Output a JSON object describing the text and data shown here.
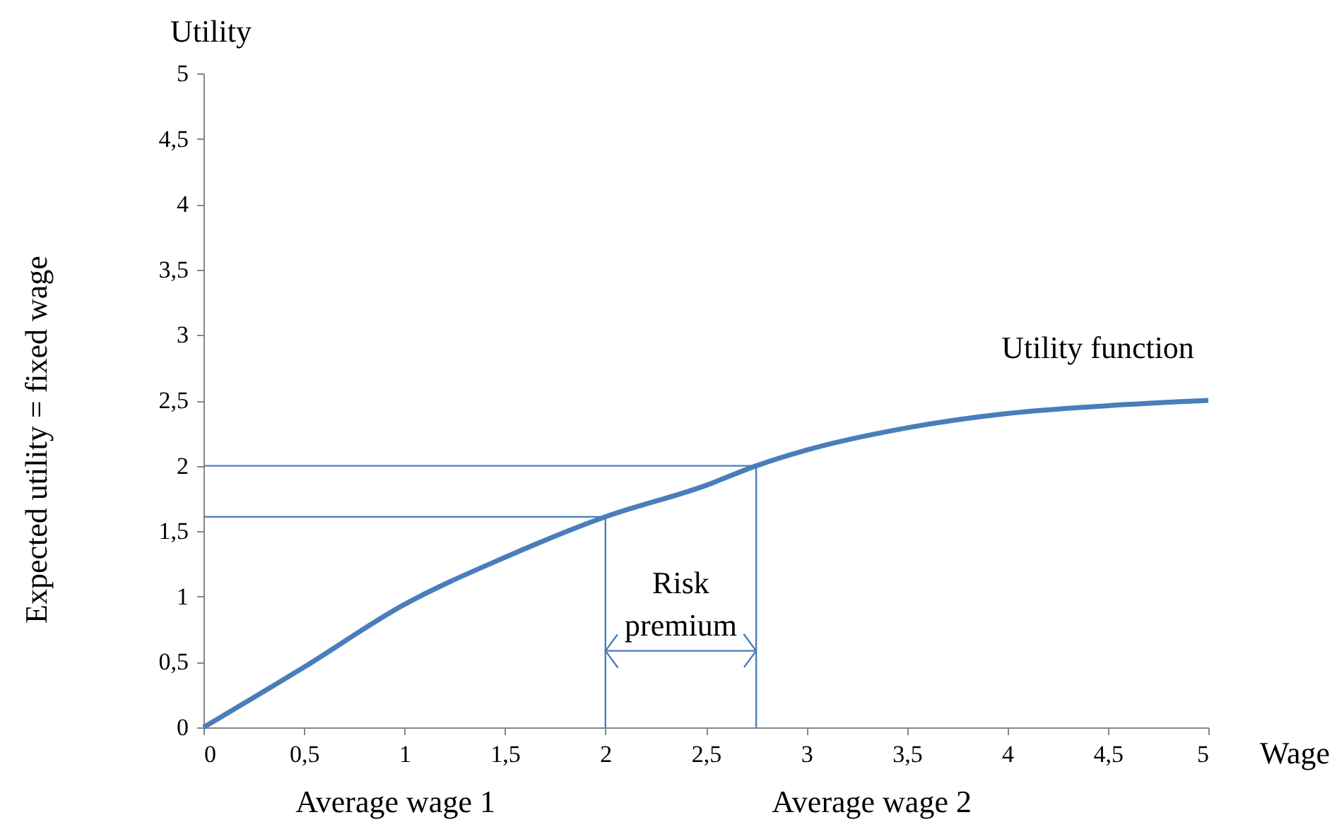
{
  "chart_data": {
    "type": "line",
    "xlabel": "Wage",
    "ylabel": "Utility",
    "annotations": [
      "Expected utility = fixed wage",
      "Utility function",
      "Risk premium",
      "Average wage 1",
      "Average wage 2"
    ],
    "series": [
      {
        "color": "#4a7ebb",
        "x": [
          0,
          0.5,
          1,
          1.5,
          2,
          2.5,
          2.75,
          3,
          3.5,
          4,
          4.5,
          5
        ],
        "values": [
          0,
          0.46,
          0.94,
          1.3,
          1.61,
          1.85,
          2.0,
          2.12,
          2.29,
          2.4,
          2.46,
          2.5
        ]
      },
      {
        "color": "#4a7ebb",
        "x": [
          0,
          2,
          2
        ],
        "values": [
          1.61,
          1.61,
          0
        ]
      },
      {
        "color": "#4a7ebb",
        "x": [
          0,
          2.75,
          2.75
        ],
        "values": [
          2.0,
          2.0,
          0
        ]
      }
    ],
    "xlim": [
      0,
      5
    ],
    "ylim": [
      0,
      5
    ],
    "xticks": [
      0,
      {
        "value": 0.5,
        "label": "0,5"
      },
      1,
      {
        "value": 1.5,
        "label": "1,5"
      },
      2,
      {
        "value": 2.5,
        "label": "2,5"
      },
      3,
      {
        "value": 3.5,
        "label": "3,5"
      },
      4,
      {
        "value": 4.5,
        "label": "4,5"
      },
      5
    ],
    "yticks": [
      0,
      {
        "value": 0.5,
        "label": "0,5"
      },
      1,
      {
        "value": 1.5,
        "label": "1,5"
      },
      2,
      {
        "value": 2.5,
        "label": "2,5"
      },
      3,
      {
        "value": 3.5,
        "label": "3,5"
      },
      4,
      {
        "value": 4.5,
        "label": "4,5"
      },
      5
    ],
    "grid": false
  }
}
